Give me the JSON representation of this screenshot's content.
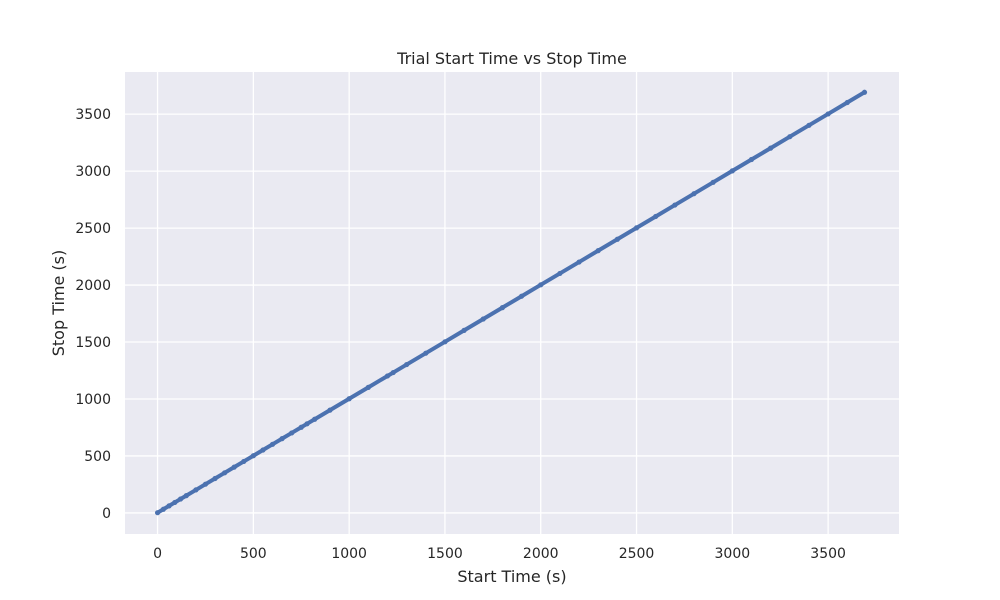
{
  "chart_data": {
    "type": "scatter",
    "title": "Trial Start Time vs Stop Time",
    "xlabel": "Start Time (s)",
    "ylabel": "Stop Time (s)",
    "xlim": [
      -170,
      3870
    ],
    "ylim": [
      -185,
      3870
    ],
    "x_ticks": [
      0,
      500,
      1000,
      1500,
      2000,
      2500,
      3000,
      3500
    ],
    "y_ticks": [
      0,
      500,
      1000,
      1500,
      2000,
      2500,
      3000,
      3500
    ],
    "grid": true,
    "legend": null,
    "color": "#4C72B0",
    "series": [
      {
        "x": [
          0,
          30,
          60,
          90,
          120,
          150,
          200,
          250,
          300,
          350,
          400,
          450,
          500,
          550,
          600,
          650,
          700,
          750,
          780,
          820,
          900,
          1000,
          1100,
          1200,
          1230,
          1300,
          1400,
          1500,
          1600,
          1700,
          1800,
          1900,
          2000,
          2100,
          2200,
          2300,
          2400,
          2500,
          2600,
          2700,
          2800,
          2900,
          3000,
          3100,
          3200,
          3300,
          3400,
          3500,
          3600,
          3690
        ],
        "y": [
          2,
          32,
          62,
          92,
          122,
          152,
          202,
          252,
          302,
          352,
          402,
          452,
          502,
          552,
          602,
          652,
          702,
          752,
          782,
          822,
          902,
          1002,
          1102,
          1202,
          1232,
          1302,
          1402,
          1502,
          1602,
          1702,
          1802,
          1902,
          2002,
          2102,
          2202,
          2302,
          2402,
          2502,
          2602,
          2702,
          2802,
          2902,
          3002,
          3102,
          3202,
          3302,
          3402,
          3502,
          3602,
          3692
        ]
      }
    ]
  }
}
